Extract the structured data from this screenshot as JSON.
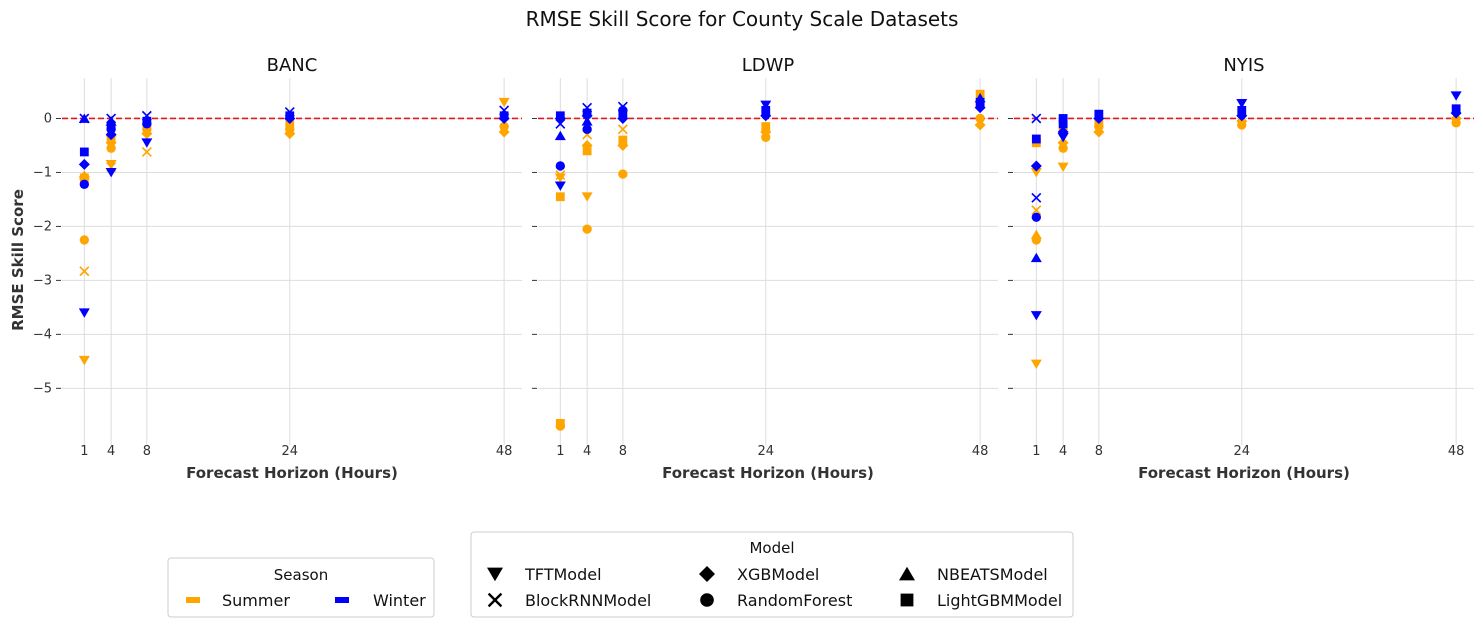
{
  "chart_data": {
    "type": "scatter",
    "title": "RMSE Skill Score for County Scale Datasets",
    "xlabel": "Forecast Horizon (Hours)",
    "ylabel": "RMSE Skill Score",
    "x_ticks": [
      1,
      4,
      8,
      24,
      48
    ],
    "y_ticks": [
      0,
      -1,
      -2,
      -3,
      -4,
      -5
    ],
    "xlim": [
      -1.5,
      50
    ],
    "ylim": [
      -6.05,
      0.75
    ],
    "reference_line": 0,
    "reference_line_color": "#e31a1c",
    "grid": true,
    "colors": {
      "Summer": "#ffa500",
      "Winter": "#0000ff"
    },
    "legend_season": {
      "title": "Season",
      "entries": [
        {
          "label": "Summer"
        },
        {
          "label": "Winter"
        }
      ]
    },
    "legend_model": {
      "title": "Model",
      "entries": [
        {
          "label": "TFTModel",
          "marker": "v"
        },
        {
          "label": "XGBModel",
          "marker": "D"
        },
        {
          "label": "NBEATSModel",
          "marker": "^"
        },
        {
          "label": "BlockRNNModel",
          "marker": "x"
        },
        {
          "label": "RandomForest",
          "marker": "o"
        },
        {
          "label": "LightGBMModel",
          "marker": "s"
        }
      ]
    },
    "panels": [
      {
        "title": "BANC",
        "points": [
          {
            "x": 1,
            "y": -4.48,
            "season": "Summer",
            "model": "TFTModel"
          },
          {
            "x": 1,
            "y": -2.83,
            "season": "Summer",
            "model": "BlockRNNModel"
          },
          {
            "x": 1,
            "y": -2.25,
            "season": "Summer",
            "model": "RandomForest"
          },
          {
            "x": 1,
            "y": -1.08,
            "season": "Summer",
            "model": "XGBModel"
          },
          {
            "x": 1,
            "y": -1.1,
            "season": "Summer",
            "model": "LightGBMModel"
          },
          {
            "x": 1,
            "y": -1.05,
            "season": "Summer",
            "model": "NBEATSModel"
          },
          {
            "x": 1,
            "y": -3.6,
            "season": "Winter",
            "model": "TFTModel"
          },
          {
            "x": 1,
            "y": -1.22,
            "season": "Winter",
            "model": "RandomForest"
          },
          {
            "x": 1,
            "y": -0.85,
            "season": "Winter",
            "model": "XGBModel"
          },
          {
            "x": 1,
            "y": -0.62,
            "season": "Winter",
            "model": "LightGBMModel"
          },
          {
            "x": 1,
            "y": 0.0,
            "season": "Winter",
            "model": "NBEATSModel"
          },
          {
            "x": 1,
            "y": 0.0,
            "season": "Winter",
            "model": "BlockRNNModel"
          },
          {
            "x": 4,
            "y": -0.9,
            "season": "Summer",
            "model": "BlockRNNModel"
          },
          {
            "x": 4,
            "y": -0.55,
            "season": "Summer",
            "model": "RandomForest"
          },
          {
            "x": 4,
            "y": -0.45,
            "season": "Summer",
            "model": "XGBModel"
          },
          {
            "x": 4,
            "y": -0.35,
            "season": "Summer",
            "model": "LightGBMModel"
          },
          {
            "x": 4,
            "y": -0.25,
            "season": "Summer",
            "model": "NBEATSModel"
          },
          {
            "x": 4,
            "y": -0.85,
            "season": "Summer",
            "model": "TFTModel"
          },
          {
            "x": 4,
            "y": -1.0,
            "season": "Winter",
            "model": "TFTModel"
          },
          {
            "x": 4,
            "y": -0.3,
            "season": "Winter",
            "model": "XGBModel"
          },
          {
            "x": 4,
            "y": -0.2,
            "season": "Winter",
            "model": "RandomForest"
          },
          {
            "x": 4,
            "y": -0.15,
            "season": "Winter",
            "model": "LightGBMModel"
          },
          {
            "x": 4,
            "y": -0.05,
            "season": "Winter",
            "model": "NBEATSModel"
          },
          {
            "x": 4,
            "y": 0.0,
            "season": "Winter",
            "model": "BlockRNNModel"
          },
          {
            "x": 8,
            "y": -0.62,
            "season": "Summer",
            "model": "BlockRNNModel"
          },
          {
            "x": 8,
            "y": -0.28,
            "season": "Summer",
            "model": "XGBModel"
          },
          {
            "x": 8,
            "y": -0.2,
            "season": "Summer",
            "model": "RandomForest"
          },
          {
            "x": 8,
            "y": -0.15,
            "season": "Summer",
            "model": "LightGBMModel"
          },
          {
            "x": 8,
            "y": -0.45,
            "season": "Winter",
            "model": "TFTModel"
          },
          {
            "x": 8,
            "y": -0.1,
            "season": "Winter",
            "model": "RandomForest"
          },
          {
            "x": 8,
            "y": -0.05,
            "season": "Winter",
            "model": "LightGBMModel"
          },
          {
            "x": 8,
            "y": 0.05,
            "season": "Winter",
            "model": "BlockRNNModel"
          },
          {
            "x": 24,
            "y": -0.28,
            "season": "Summer",
            "model": "XGBModel"
          },
          {
            "x": 24,
            "y": -0.2,
            "season": "Summer",
            "model": "RandomForest"
          },
          {
            "x": 24,
            "y": -0.12,
            "season": "Summer",
            "model": "LightGBMModel"
          },
          {
            "x": 24,
            "y": 0.0,
            "season": "Winter",
            "model": "XGBModel"
          },
          {
            "x": 24,
            "y": 0.05,
            "season": "Winter",
            "model": "LightGBMModel"
          },
          {
            "x": 24,
            "y": 0.12,
            "season": "Winter",
            "model": "BlockRNNModel"
          },
          {
            "x": 48,
            "y": -0.25,
            "season": "Summer",
            "model": "XGBModel"
          },
          {
            "x": 48,
            "y": -0.15,
            "season": "Summer",
            "model": "RandomForest"
          },
          {
            "x": 48,
            "y": 0.3,
            "season": "Summer",
            "model": "TFTModel"
          },
          {
            "x": 48,
            "y": 0.0,
            "season": "Winter",
            "model": "XGBModel"
          },
          {
            "x": 48,
            "y": 0.05,
            "season": "Winter",
            "model": "LightGBMModel"
          },
          {
            "x": 48,
            "y": 0.15,
            "season": "Winter",
            "model": "BlockRNNModel"
          }
        ]
      },
      {
        "title": "LDWP",
        "points": [
          {
            "x": 1,
            "y": -5.65,
            "season": "Summer",
            "model": "LightGBMModel"
          },
          {
            "x": 1,
            "y": -5.7,
            "season": "Summer",
            "model": "RandomForest"
          },
          {
            "x": 1,
            "y": -1.45,
            "season": "Summer",
            "model": "LightGBMModel"
          },
          {
            "x": 1,
            "y": -1.05,
            "season": "Summer",
            "model": "BlockRNNModel"
          },
          {
            "x": 1,
            "y": -1.1,
            "season": "Summer",
            "model": "TFTModel"
          },
          {
            "x": 1,
            "y": -1.25,
            "season": "Winter",
            "model": "TFTModel"
          },
          {
            "x": 1,
            "y": -0.88,
            "season": "Winter",
            "model": "RandomForest"
          },
          {
            "x": 1,
            "y": -0.32,
            "season": "Winter",
            "model": "NBEATSModel"
          },
          {
            "x": 1,
            "y": -0.1,
            "season": "Winter",
            "model": "BlockRNNModel"
          },
          {
            "x": 1,
            "y": 0.0,
            "season": "Winter",
            "model": "XGBModel"
          },
          {
            "x": 1,
            "y": 0.05,
            "season": "Winter",
            "model": "LightGBMModel"
          },
          {
            "x": 4,
            "y": -2.05,
            "season": "Summer",
            "model": "RandomForest"
          },
          {
            "x": 4,
            "y": -1.45,
            "season": "Summer",
            "model": "TFTModel"
          },
          {
            "x": 4,
            "y": -0.6,
            "season": "Summer",
            "model": "LightGBMModel"
          },
          {
            "x": 4,
            "y": -0.5,
            "season": "Summer",
            "model": "XGBModel"
          },
          {
            "x": 4,
            "y": -0.3,
            "season": "Summer",
            "model": "BlockRNNModel"
          },
          {
            "x": 4,
            "y": -0.2,
            "season": "Winter",
            "model": "RandomForest"
          },
          {
            "x": 4,
            "y": -0.05,
            "season": "Winter",
            "model": "NBEATSModel"
          },
          {
            "x": 4,
            "y": 0.05,
            "season": "Winter",
            "model": "XGBModel"
          },
          {
            "x": 4,
            "y": 0.1,
            "season": "Winter",
            "model": "LightGBMModel"
          },
          {
            "x": 4,
            "y": 0.2,
            "season": "Winter",
            "model": "BlockRNNModel"
          },
          {
            "x": 8,
            "y": -1.03,
            "season": "Summer",
            "model": "RandomForest"
          },
          {
            "x": 8,
            "y": -0.5,
            "season": "Summer",
            "model": "XGBModel"
          },
          {
            "x": 8,
            "y": -0.4,
            "season": "Summer",
            "model": "LightGBMModel"
          },
          {
            "x": 8,
            "y": -0.2,
            "season": "Summer",
            "model": "BlockRNNModel"
          },
          {
            "x": 8,
            "y": 0.0,
            "season": "Winter",
            "model": "XGBModel"
          },
          {
            "x": 8,
            "y": 0.1,
            "season": "Winter",
            "model": "LightGBMModel"
          },
          {
            "x": 8,
            "y": 0.15,
            "season": "Winter",
            "model": "RandomForest"
          },
          {
            "x": 8,
            "y": 0.22,
            "season": "Winter",
            "model": "BlockRNNModel"
          },
          {
            "x": 24,
            "y": -0.35,
            "season": "Summer",
            "model": "RandomForest"
          },
          {
            "x": 24,
            "y": -0.25,
            "season": "Summer",
            "model": "XGBModel"
          },
          {
            "x": 24,
            "y": -0.15,
            "season": "Summer",
            "model": "LightGBMModel"
          },
          {
            "x": 24,
            "y": 0.05,
            "season": "Winter",
            "model": "XGBModel"
          },
          {
            "x": 24,
            "y": 0.15,
            "season": "Winter",
            "model": "LightGBMModel"
          },
          {
            "x": 24,
            "y": 0.25,
            "season": "Winter",
            "model": "TFTModel"
          },
          {
            "x": 48,
            "y": -0.12,
            "season": "Summer",
            "model": "XGBModel"
          },
          {
            "x": 48,
            "y": 0.0,
            "season": "Summer",
            "model": "RandomForest"
          },
          {
            "x": 48,
            "y": 0.45,
            "season": "Summer",
            "model": "LightGBMModel"
          },
          {
            "x": 48,
            "y": 0.2,
            "season": "Winter",
            "model": "XGBModel"
          },
          {
            "x": 48,
            "y": 0.3,
            "season": "Winter",
            "model": "LightGBMModel"
          },
          {
            "x": 48,
            "y": 0.38,
            "season": "Winter",
            "model": "NBEATSModel"
          }
        ]
      },
      {
        "title": "NYIS",
        "points": [
          {
            "x": 1,
            "y": -4.55,
            "season": "Summer",
            "model": "TFTModel"
          },
          {
            "x": 1,
            "y": -2.25,
            "season": "Summer",
            "model": "RandomForest"
          },
          {
            "x": 1,
            "y": -2.15,
            "season": "Summer",
            "model": "NBEATSModel"
          },
          {
            "x": 1,
            "y": -1.7,
            "season": "Summer",
            "model": "BlockRNNModel"
          },
          {
            "x": 1,
            "y": -1.0,
            "season": "Summer",
            "model": "TFTModel"
          },
          {
            "x": 1,
            "y": -0.45,
            "season": "Summer",
            "model": "LightGBMModel"
          },
          {
            "x": 1,
            "y": -3.65,
            "season": "Winter",
            "model": "TFTModel"
          },
          {
            "x": 1,
            "y": -2.58,
            "season": "Winter",
            "model": "NBEATSModel"
          },
          {
            "x": 1,
            "y": -1.83,
            "season": "Winter",
            "model": "RandomForest"
          },
          {
            "x": 1,
            "y": -1.47,
            "season": "Winter",
            "model": "BlockRNNModel"
          },
          {
            "x": 1,
            "y": -0.88,
            "season": "Winter",
            "model": "XGBModel"
          },
          {
            "x": 1,
            "y": -0.38,
            "season": "Winter",
            "model": "LightGBMModel"
          },
          {
            "x": 1,
            "y": 0.0,
            "season": "Winter",
            "model": "BlockRNNModel"
          },
          {
            "x": 4,
            "y": -0.9,
            "season": "Summer",
            "model": "TFTModel"
          },
          {
            "x": 4,
            "y": -0.55,
            "season": "Summer",
            "model": "RandomForest"
          },
          {
            "x": 4,
            "y": -0.45,
            "season": "Summer",
            "model": "XGBModel"
          },
          {
            "x": 4,
            "y": -0.25,
            "season": "Summer",
            "model": "LightGBMModel"
          },
          {
            "x": 4,
            "y": -0.35,
            "season": "Winter",
            "model": "TFTModel"
          },
          {
            "x": 4,
            "y": -0.25,
            "season": "Winter",
            "model": "XGBModel"
          },
          {
            "x": 4,
            "y": -0.1,
            "season": "Winter",
            "model": "LightGBMModel"
          },
          {
            "x": 4,
            "y": 0.0,
            "season": "Winter",
            "model": "LightGBMModel"
          },
          {
            "x": 8,
            "y": -0.25,
            "season": "Summer",
            "model": "XGBModel"
          },
          {
            "x": 8,
            "y": -0.15,
            "season": "Summer",
            "model": "RandomForest"
          },
          {
            "x": 8,
            "y": -0.05,
            "season": "Summer",
            "model": "LightGBMModel"
          },
          {
            "x": 8,
            "y": 0.0,
            "season": "Winter",
            "model": "XGBModel"
          },
          {
            "x": 8,
            "y": 0.08,
            "season": "Winter",
            "model": "LightGBMModel"
          },
          {
            "x": 24,
            "y": -0.12,
            "season": "Summer",
            "model": "RandomForest"
          },
          {
            "x": 24,
            "y": -0.05,
            "season": "Summer",
            "model": "XGBModel"
          },
          {
            "x": 24,
            "y": 0.05,
            "season": "Winter",
            "model": "XGBModel"
          },
          {
            "x": 24,
            "y": 0.15,
            "season": "Winter",
            "model": "LightGBMModel"
          },
          {
            "x": 24,
            "y": 0.28,
            "season": "Winter",
            "model": "TFTModel"
          },
          {
            "x": 48,
            "y": -0.08,
            "season": "Summer",
            "model": "RandomForest"
          },
          {
            "x": 48,
            "y": 0.0,
            "season": "Summer",
            "model": "XGBModel"
          },
          {
            "x": 48,
            "y": 0.1,
            "season": "Winter",
            "model": "XGBModel"
          },
          {
            "x": 48,
            "y": 0.18,
            "season": "Winter",
            "model": "LightGBMModel"
          },
          {
            "x": 48,
            "y": 0.42,
            "season": "Winter",
            "model": "TFTModel"
          }
        ]
      }
    ]
  }
}
